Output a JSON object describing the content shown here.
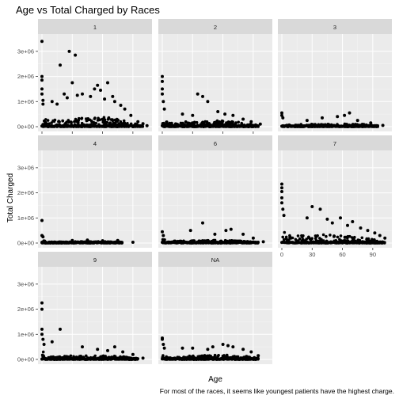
{
  "chart_data": {
    "type": "scatter",
    "title": "Age vs Total Charged by Races",
    "xlabel": "Age",
    "ylabel": "Total Charged",
    "caption": "For most of the races, it seems like youngest patients have the highest charge.",
    "xlim": [
      0,
      105
    ],
    "ylim": [
      0,
      3500000
    ],
    "x_ticks": [
      0,
      30,
      60,
      90
    ],
    "x_tick_labels": [
      "0",
      "30",
      "60",
      "90"
    ],
    "y_ticks": [
      0,
      1000000,
      2000000,
      3000000
    ],
    "y_tick_labels": [
      "0e+00",
      "1e+06",
      "2e+06",
      "3e+06"
    ],
    "grid": true,
    "facets": [
      {
        "label": "1",
        "dense_band": [
          [
            0,
            900000
          ],
          [
            5,
            250000
          ],
          [
            20,
            300000
          ],
          [
            40,
            350000
          ],
          [
            60,
            400000
          ],
          [
            75,
            300000
          ],
          [
            90,
            150000
          ],
          [
            100,
            40000
          ]
        ],
        "points": [
          [
            0,
            3400000
          ],
          [
            0,
            2000000
          ],
          [
            0,
            1850000
          ],
          [
            0,
            1500000
          ],
          [
            0,
            1300000
          ],
          [
            1,
            1050000
          ],
          [
            1,
            900000
          ],
          [
            18,
            2450000
          ],
          [
            27,
            3000000
          ],
          [
            33,
            2850000
          ],
          [
            30,
            1750000
          ],
          [
            10,
            1000000
          ],
          [
            15,
            900000
          ],
          [
            22,
            1300000
          ],
          [
            25,
            1150000
          ],
          [
            35,
            1250000
          ],
          [
            40,
            1300000
          ],
          [
            48,
            1200000
          ],
          [
            52,
            1500000
          ],
          [
            55,
            1650000
          ],
          [
            58,
            1450000
          ],
          [
            62,
            1100000
          ],
          [
            65,
            1750000
          ],
          [
            70,
            1200000
          ],
          [
            72,
            1000000
          ],
          [
            78,
            850000
          ],
          [
            82,
            700000
          ],
          [
            88,
            450000
          ],
          [
            95,
            200000
          ],
          [
            100,
            120000
          ],
          [
            104,
            40000
          ]
        ]
      },
      {
        "label": "2",
        "dense_band": [
          [
            0,
            600000
          ],
          [
            5,
            180000
          ],
          [
            20,
            200000
          ],
          [
            40,
            250000
          ],
          [
            60,
            250000
          ],
          [
            80,
            180000
          ],
          [
            95,
            60000
          ]
        ],
        "points": [
          [
            0,
            2000000
          ],
          [
            0,
            1800000
          ],
          [
            0,
            1500000
          ],
          [
            0,
            1300000
          ],
          [
            1,
            1000000
          ],
          [
            2,
            700000
          ],
          [
            35,
            1300000
          ],
          [
            40,
            1200000
          ],
          [
            45,
            1000000
          ],
          [
            20,
            500000
          ],
          [
            30,
            450000
          ],
          [
            55,
            600000
          ],
          [
            62,
            500000
          ],
          [
            70,
            450000
          ],
          [
            80,
            300000
          ],
          [
            88,
            200000
          ],
          [
            97,
            100000
          ]
        ]
      },
      {
        "label": "3",
        "dense_band": [
          [
            0,
            300000
          ],
          [
            5,
            80000
          ],
          [
            30,
            100000
          ],
          [
            60,
            120000
          ],
          [
            80,
            100000
          ],
          [
            95,
            40000
          ]
        ],
        "points": [
          [
            0,
            550000
          ],
          [
            0,
            450000
          ],
          [
            1,
            350000
          ],
          [
            40,
            350000
          ],
          [
            55,
            400000
          ],
          [
            62,
            450000
          ],
          [
            67,
            550000
          ],
          [
            25,
            250000
          ],
          [
            75,
            250000
          ],
          [
            88,
            150000
          ],
          [
            100,
            50000
          ]
        ]
      },
      {
        "label": "4",
        "dense_band": [
          [
            0,
            200000
          ],
          [
            5,
            40000
          ],
          [
            30,
            60000
          ],
          [
            60,
            60000
          ],
          [
            80,
            50000
          ]
        ],
        "points": [
          [
            0,
            900000
          ],
          [
            0,
            300000
          ],
          [
            1,
            250000
          ],
          [
            30,
            100000
          ],
          [
            45,
            120000
          ],
          [
            60,
            90000
          ],
          [
            75,
            100000
          ],
          [
            90,
            30000
          ]
        ]
      },
      {
        "label": "6",
        "dense_band": [
          [
            0,
            200000
          ],
          [
            5,
            80000
          ],
          [
            30,
            100000
          ],
          [
            60,
            120000
          ],
          [
            80,
            80000
          ],
          [
            95,
            30000
          ]
        ],
        "points": [
          [
            0,
            450000
          ],
          [
            1,
            300000
          ],
          [
            28,
            500000
          ],
          [
            40,
            800000
          ],
          [
            52,
            350000
          ],
          [
            63,
            500000
          ],
          [
            68,
            550000
          ],
          [
            80,
            350000
          ],
          [
            90,
            200000
          ],
          [
            100,
            50000
          ]
        ]
      },
      {
        "label": "7",
        "dense_band": [
          [
            0,
            1200000
          ],
          [
            5,
            300000
          ],
          [
            30,
            350000
          ],
          [
            60,
            300000
          ],
          [
            80,
            250000
          ],
          [
            95,
            100000
          ],
          [
            102,
            30000
          ]
        ],
        "points": [
          [
            0,
            2350000
          ],
          [
            0,
            2200000
          ],
          [
            0,
            2050000
          ],
          [
            0,
            1800000
          ],
          [
            0,
            1600000
          ],
          [
            1,
            1350000
          ],
          [
            2,
            1100000
          ],
          [
            30,
            1450000
          ],
          [
            38,
            1350000
          ],
          [
            25,
            1000000
          ],
          [
            45,
            950000
          ],
          [
            50,
            800000
          ],
          [
            58,
            1000000
          ],
          [
            65,
            700000
          ],
          [
            70,
            850000
          ],
          [
            78,
            600000
          ],
          [
            85,
            500000
          ],
          [
            92,
            400000
          ],
          [
            97,
            300000
          ],
          [
            102,
            200000
          ]
        ]
      },
      {
        "label": "9",
        "dense_band": [
          [
            0,
            500000
          ],
          [
            5,
            100000
          ],
          [
            30,
            150000
          ],
          [
            60,
            150000
          ],
          [
            80,
            120000
          ],
          [
            95,
            50000
          ]
        ],
        "points": [
          [
            0,
            2250000
          ],
          [
            0,
            2000000
          ],
          [
            0,
            1200000
          ],
          [
            0,
            1000000
          ],
          [
            1,
            800000
          ],
          [
            2,
            600000
          ],
          [
            10,
            700000
          ],
          [
            18,
            1200000
          ],
          [
            40,
            500000
          ],
          [
            55,
            400000
          ],
          [
            65,
            350000
          ],
          [
            72,
            500000
          ],
          [
            80,
            300000
          ],
          [
            90,
            200000
          ],
          [
            100,
            50000
          ]
        ]
      },
      {
        "label": "NA",
        "dense_band": [
          [
            0,
            400000
          ],
          [
            5,
            80000
          ],
          [
            30,
            150000
          ],
          [
            60,
            200000
          ],
          [
            80,
            150000
          ],
          [
            95,
            50000
          ]
        ],
        "points": [
          [
            0,
            850000
          ],
          [
            0,
            800000
          ],
          [
            1,
            600000
          ],
          [
            2,
            450000
          ],
          [
            20,
            450000
          ],
          [
            30,
            450000
          ],
          [
            45,
            400000
          ],
          [
            50,
            500000
          ],
          [
            60,
            600000
          ],
          [
            65,
            550000
          ],
          [
            70,
            500000
          ],
          [
            80,
            400000
          ],
          [
            88,
            300000
          ],
          [
            95,
            150000
          ]
        ]
      }
    ]
  }
}
